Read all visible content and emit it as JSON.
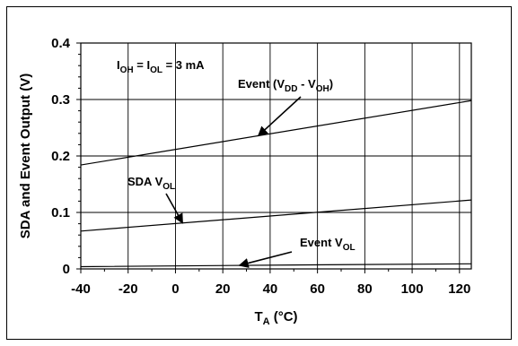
{
  "chart_data": {
    "type": "line",
    "xlabel": {
      "main": "T",
      "sub": "A",
      "rest": " (°C)"
    },
    "ylabel": "SDA and Event Output (V)",
    "xlim": [
      -40,
      125
    ],
    "ylim": [
      0,
      0.4
    ],
    "xticks": [
      -40,
      -20,
      0,
      20,
      40,
      60,
      80,
      100,
      120
    ],
    "xtick_labels": [
      "-40",
      "-20",
      "0",
      "20",
      "40",
      "60",
      "80",
      "100",
      "120"
    ],
    "yticks": [
      0,
      0.1,
      0.2,
      0.3,
      0.4
    ],
    "ytick_labels": [
      "0",
      "0.1",
      "0.2",
      "0.3",
      "0.4"
    ],
    "grid": true,
    "condition": {
      "segments": [
        {
          "t": "I",
          "sub": false
        },
        {
          "t": "OH",
          "sub": true
        },
        {
          "t": " = I",
          "sub": false
        },
        {
          "t": "OL",
          "sub": true
        },
        {
          "t": " = 3 mA",
          "sub": false
        }
      ]
    },
    "series": [
      {
        "name": "Event (VDD - VOH)",
        "x": [
          -40,
          125
        ],
        "y": [
          0.184,
          0.298
        ],
        "label_segments": [
          {
            "t": "Event (V",
            "sub": false
          },
          {
            "t": "DD",
            "sub": true
          },
          {
            "t": " - V",
            "sub": false
          },
          {
            "t": "OH",
            "sub": true
          },
          {
            "t": ")",
            "sub": false
          }
        ],
        "arrow_target_x": 35
      },
      {
        "name": "SDA VOL",
        "x": [
          -40,
          125
        ],
        "y": [
          0.067,
          0.122
        ],
        "label_segments": [
          {
            "t": "SDA V",
            "sub": false
          },
          {
            "t": "OL",
            "sub": true
          }
        ],
        "arrow_target_x": 3
      },
      {
        "name": "Event VOL",
        "x": [
          -40,
          50,
          125
        ],
        "y": [
          0.004,
          0.007,
          0.009
        ],
        "label_segments": [
          {
            "t": "Event V",
            "sub": false
          },
          {
            "t": "OL",
            "sub": true
          }
        ],
        "arrow_target_x": 27
      }
    ]
  }
}
